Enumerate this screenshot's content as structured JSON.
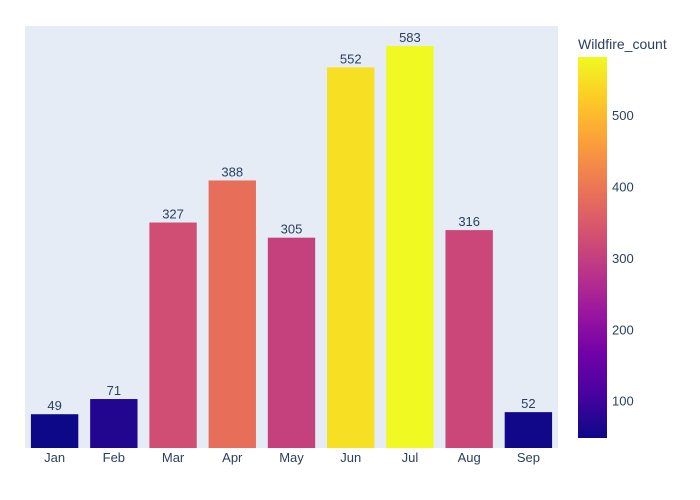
{
  "chart_data": {
    "type": "bar",
    "categories": [
      "Jan",
      "Feb",
      "Mar",
      "Apr",
      "May",
      "Jun",
      "Jul",
      "Aug",
      "Sep"
    ],
    "values": [
      49,
      71,
      327,
      388,
      305,
      552,
      583,
      316,
      52
    ],
    "data_labels": [
      "49",
      "71",
      "327",
      "388",
      "305",
      "552",
      "583",
      "316",
      "52"
    ],
    "title": "",
    "xlabel": "",
    "ylabel": "",
    "ylim": [
      0,
      583
    ],
    "grid": false,
    "colorbar": {
      "title": "Wildfire_count",
      "range": [
        49,
        583
      ],
      "ticks": [
        100,
        200,
        300,
        400,
        500
      ],
      "tick_labels": [
        "100",
        "200",
        "300",
        "400",
        "500"
      ],
      "colorscale": [
        "#0d0887",
        "#46039f",
        "#7201a8",
        "#9c179e",
        "#bd3786",
        "#d8576b",
        "#ed7953",
        "#fb9f3a",
        "#fdca26",
        "#f0f921"
      ]
    },
    "plot_background": "#e5ecf6"
  }
}
